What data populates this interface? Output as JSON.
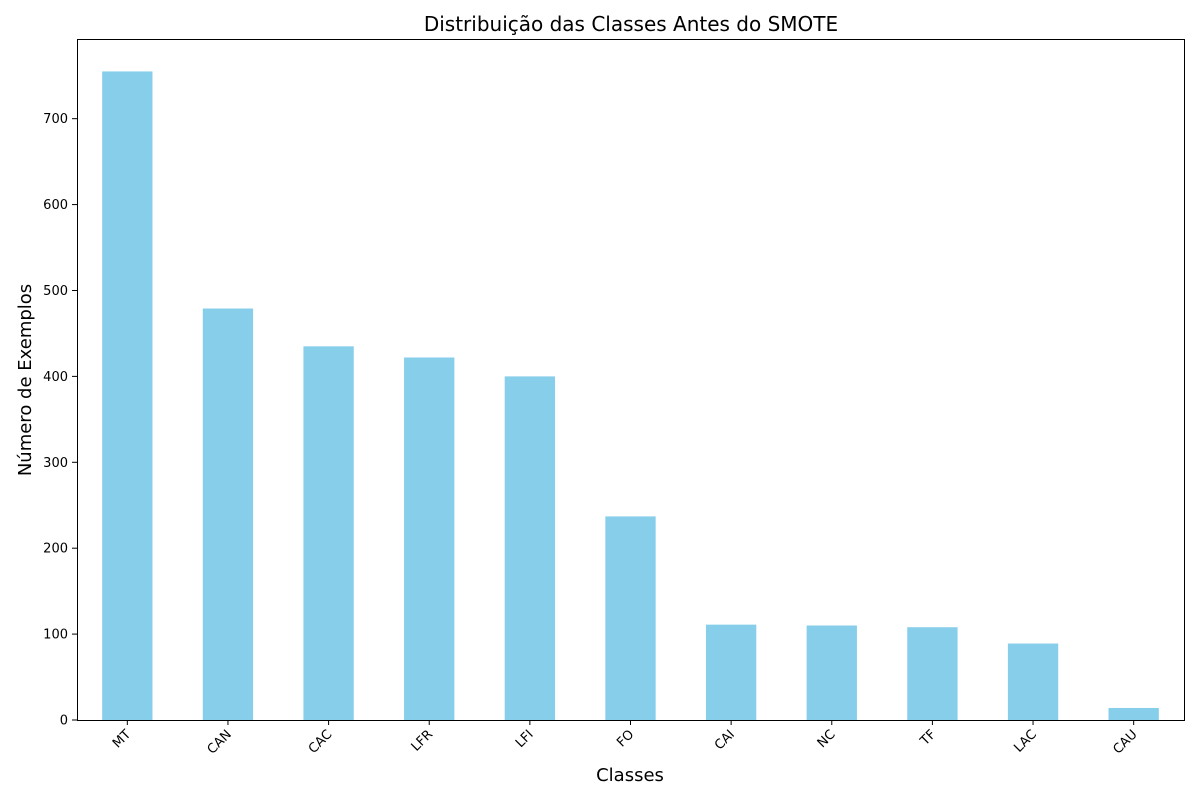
{
  "chart_data": {
    "type": "bar",
    "title": "Distribuição das Classes Antes do SMOTE",
    "xlabel": "Classes",
    "ylabel": "Número de Exemplos",
    "categories": [
      "MT",
      "CAN",
      "CAC",
      "LFR",
      "LFI",
      "FO",
      "CAI",
      "NC",
      "TF",
      "LAC",
      "CAU"
    ],
    "values": [
      755,
      479,
      435,
      422,
      400,
      237,
      111,
      110,
      108,
      89,
      14
    ],
    "ylim": [
      0,
      792.75
    ],
    "yticks": [
      0,
      100,
      200,
      300,
      400,
      500,
      600,
      700
    ],
    "grid": false,
    "bar_color": "#87CEEB"
  }
}
